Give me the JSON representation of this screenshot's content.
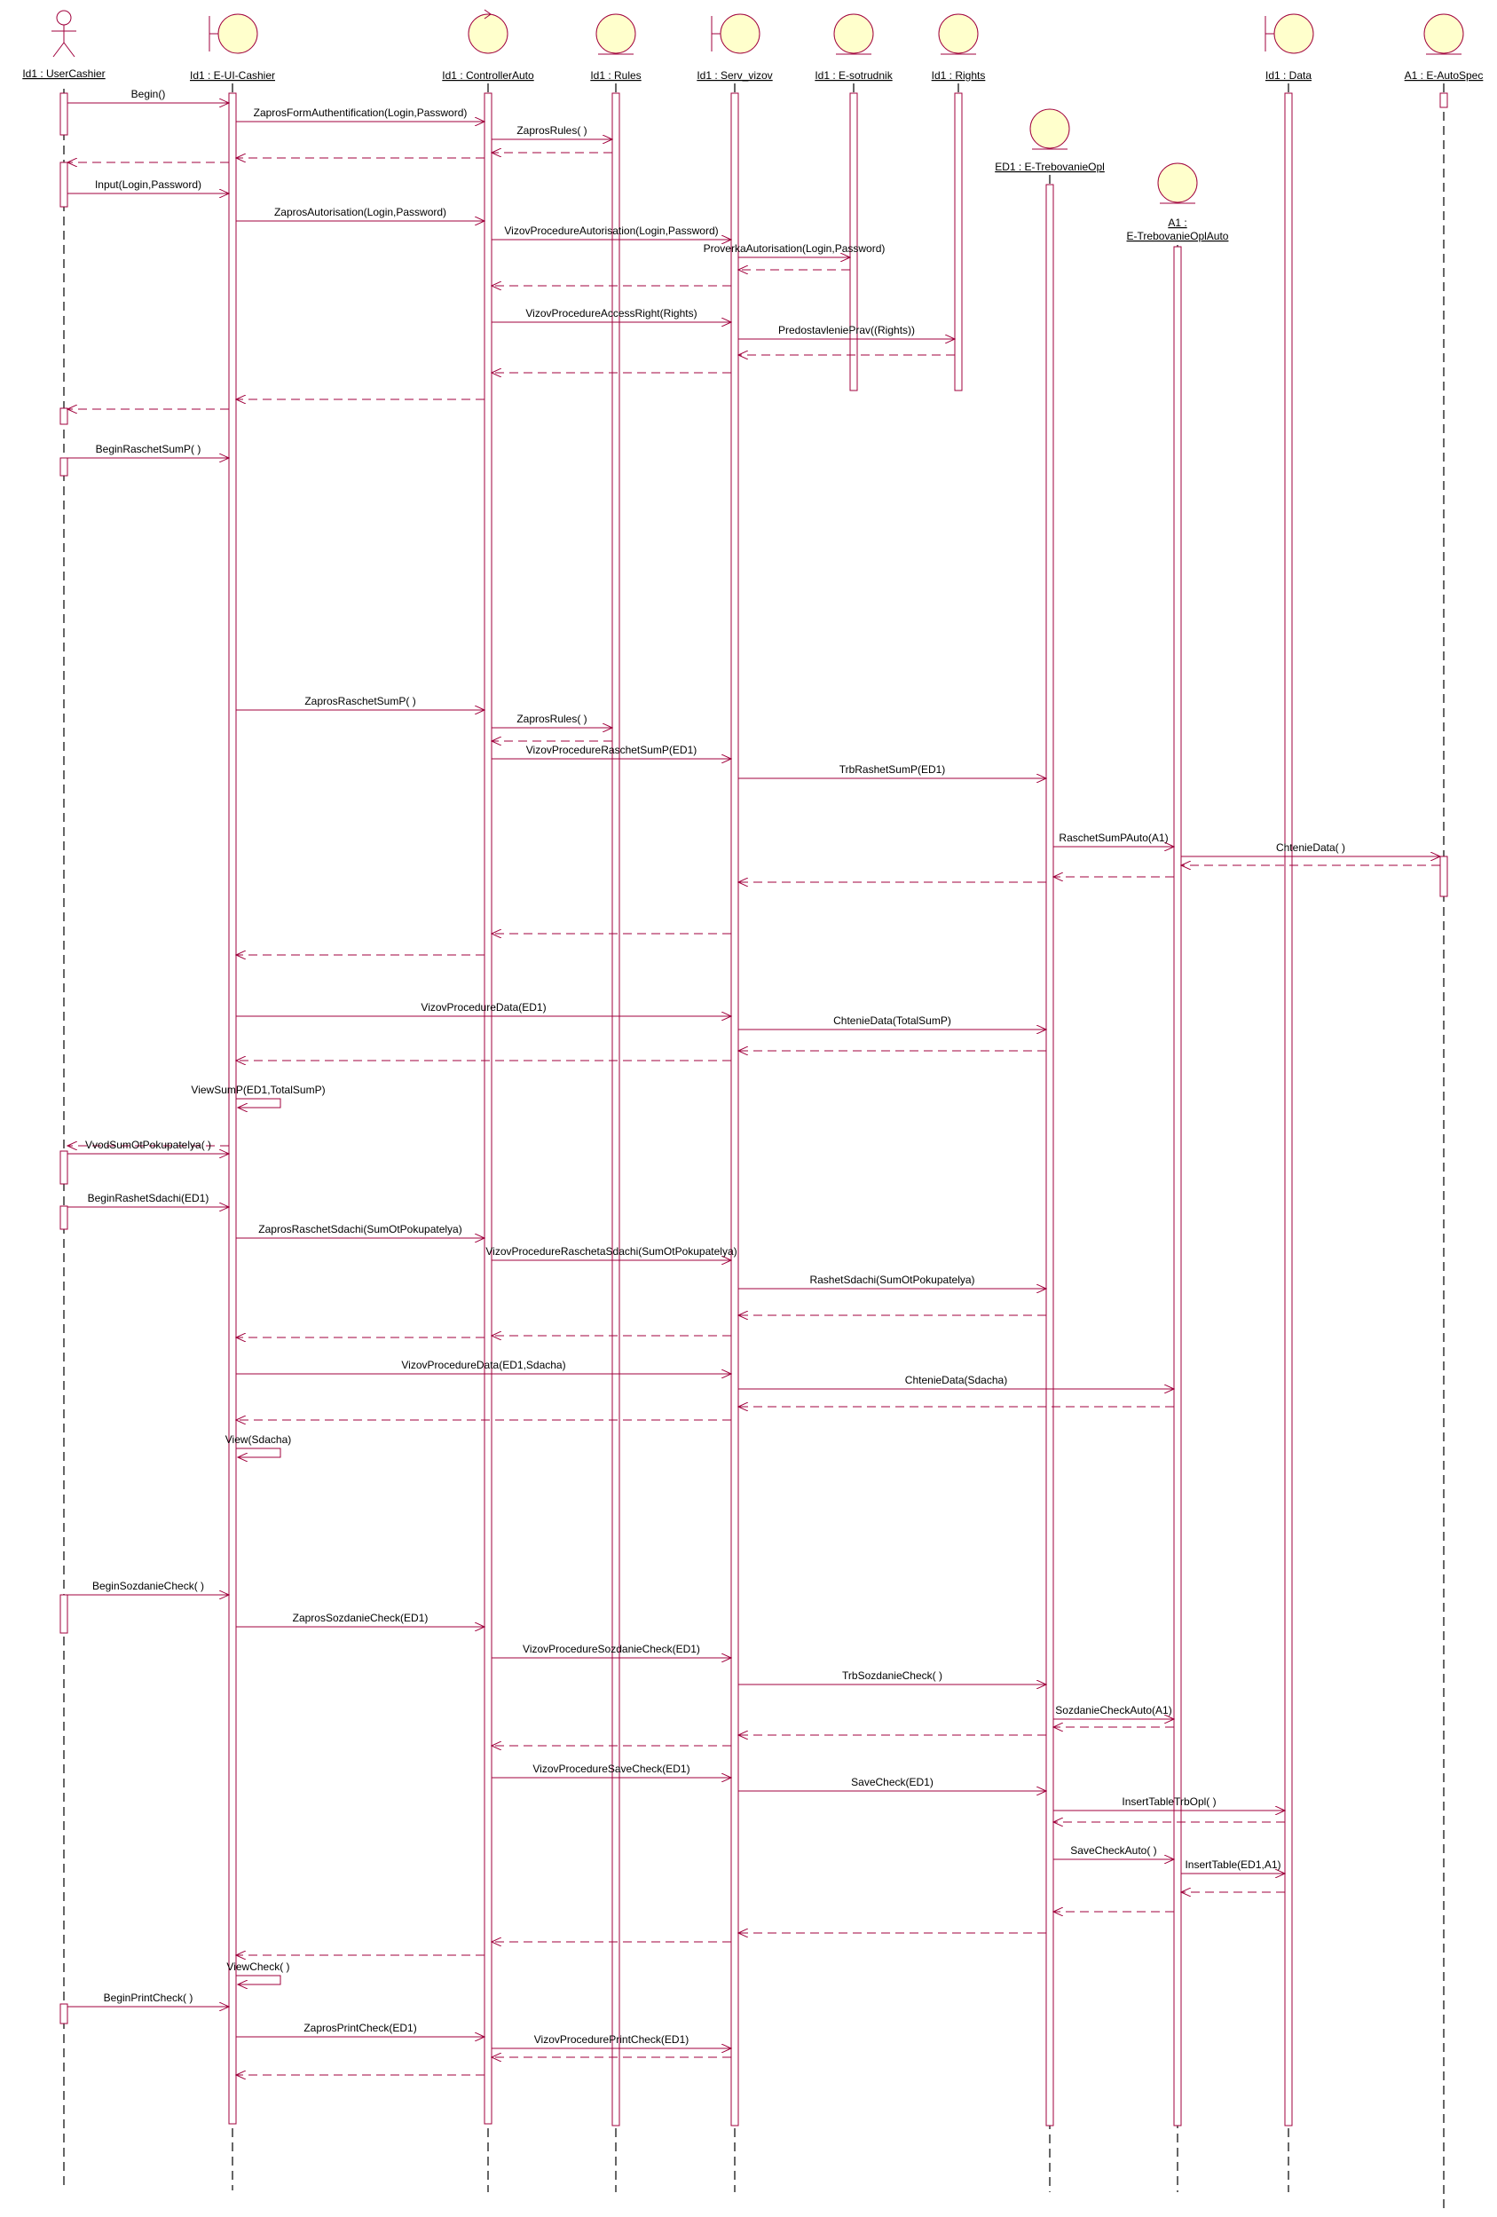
{
  "colors": {
    "line": "#a0003c",
    "bar_fill": "#ffffff",
    "lifeline_dash": "#000000",
    "object_fill": "#ffffcc",
    "text": "#000000"
  },
  "participants": [
    {
      "id": "user",
      "label": "Id1 : UserCashier",
      "kind": "actor-icon"
    },
    {
      "id": "ui",
      "label": "Id1 : E-UI-Cashier",
      "kind": "boundary-icon"
    },
    {
      "id": "ctrl",
      "label": "Id1 : ControllerAuto",
      "kind": "control-icon"
    },
    {
      "id": "rules",
      "label": "Id1 : Rules",
      "kind": "entity-icon"
    },
    {
      "id": "serv",
      "label": "Id1 : Serv_vizov",
      "kind": "boundary-icon"
    },
    {
      "id": "sotr",
      "label": "Id1 : E-sotrudnik",
      "kind": "entity-icon"
    },
    {
      "id": "rights",
      "label": "Id1 : Rights",
      "kind": "entity-icon"
    },
    {
      "id": "treb",
      "label": "ED1 : E-TrebovanieOpl",
      "kind": "entity-icon"
    },
    {
      "id": "trebauto",
      "label": "A1 :",
      "label2": "E-TrebovanieOplAuto",
      "kind": "entity-icon"
    },
    {
      "id": "data",
      "label": "Id1 : Data",
      "kind": "boundary-icon"
    },
    {
      "id": "autospec",
      "label": "A1 : E-AutoSpec",
      "kind": "entity-icon"
    }
  ],
  "messages": [
    {
      "label": "Begin()"
    },
    {
      "label": "ZaprosFormAuthentification(Login,Password)"
    },
    {
      "label": "ZaprosRules( )"
    },
    {
      "label": ""
    },
    {
      "label": ""
    },
    {
      "label": ""
    },
    {
      "label": "Input(Login,Password)"
    },
    {
      "label": "ZaprosAutorisation(Login,Password)"
    },
    {
      "label": "VizovProcedureAutorisation(Login,Password)"
    },
    {
      "label": "ProverkaAutorisation(Login,Password)"
    },
    {
      "label": ""
    },
    {
      "label": ""
    },
    {
      "label": "VizovProcedureAccessRight(Rights)"
    },
    {
      "label": "PredostavleniePrav((Rights))"
    },
    {
      "label": ""
    },
    {
      "label": ""
    },
    {
      "label": ""
    },
    {
      "label": ""
    },
    {
      "label": "BeginRaschetSumP( )"
    },
    {
      "label": "ZaprosRaschetSumP( )"
    },
    {
      "label": "ZaprosRules( )"
    },
    {
      "label": ""
    },
    {
      "label": "VizovProcedureRaschetSumP(ED1)"
    },
    {
      "label": "TrbRashetSumP(ED1)"
    },
    {
      "label": "RaschetSumPAuto(A1)"
    },
    {
      "label": "ChtenieData( )"
    },
    {
      "label": ""
    },
    {
      "label": ""
    },
    {
      "label": ""
    },
    {
      "label": ""
    },
    {
      "label": ""
    },
    {
      "label": "VizovProcedureData(ED1)"
    },
    {
      "label": "ChtenieData(TotalSumP)"
    },
    {
      "label": ""
    },
    {
      "label": ""
    },
    {
      "label": "ViewSumP(ED1,TotalSumP)"
    },
    {
      "label": ""
    },
    {
      "label": "VvodSumOtPokupatelya( )"
    },
    {
      "label": "BeginRashetSdachi(ED1)"
    },
    {
      "label": "ZaprosRaschetSdachi(SumOtPokupatelya)"
    },
    {
      "label": "VizovProcedureRaschetaSdachi(SumOtPokupatelya)"
    },
    {
      "label": "RashetSdachi(SumOtPokupatelya)"
    },
    {
      "label": ""
    },
    {
      "label": ""
    },
    {
      "label": ""
    },
    {
      "label": "VizovProcedureData(ED1,Sdacha)"
    },
    {
      "label": "ChtenieData(Sdacha)"
    },
    {
      "label": ""
    },
    {
      "label": ""
    },
    {
      "label": "View(Sdacha)"
    },
    {
      "label": "BeginSozdanieCheck( )"
    },
    {
      "label": "ZaprosSozdanieCheck(ED1)"
    },
    {
      "label": "VizovProcedureSozdanieCheck(ED1)"
    },
    {
      "label": "TrbSozdanieCheck( )"
    },
    {
      "label": "SozdanieCheckAuto(A1)"
    },
    {
      "label": ""
    },
    {
      "label": ""
    },
    {
      "label": ""
    },
    {
      "label": "VizovProcedureSaveCheck(ED1)"
    },
    {
      "label": "SaveCheck(ED1)"
    },
    {
      "label": "InsertTableTrbOpl( )"
    },
    {
      "label": ""
    },
    {
      "label": "SaveCheckAuto( )"
    },
    {
      "label": "InsertTable(ED1,A1)"
    },
    {
      "label": ""
    },
    {
      "label": ""
    },
    {
      "label": ""
    },
    {
      "label": ""
    },
    {
      "label": ""
    },
    {
      "label": "ViewCheck( )"
    },
    {
      "label": "BeginPrintCheck( )"
    },
    {
      "label": "ZaprosPrintCheck(ED1)"
    },
    {
      "label": "VizovProcedurePrintCheck(ED1)"
    },
    {
      "label": ""
    },
    {
      "label": ""
    }
  ]
}
